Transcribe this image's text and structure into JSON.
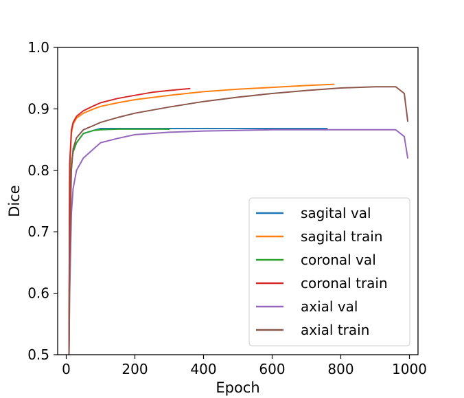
{
  "chart_data": {
    "type": "line",
    "xlabel": "Epoch",
    "ylabel": "Dice",
    "xlim": [
      -25,
      1025
    ],
    "ylim": [
      0.5,
      1.0
    ],
    "xticks": [
      0,
      200,
      400,
      600,
      800,
      1000
    ],
    "yticks": [
      0.5,
      0.6,
      0.7,
      0.8,
      0.9,
      1.0
    ],
    "xtick_labels": [
      "0",
      "200",
      "400",
      "600",
      "800",
      "1000"
    ],
    "ytick_labels": [
      "0.5",
      "0.6",
      "0.7",
      "0.8",
      "0.9",
      "1.0"
    ],
    "grid": false,
    "legend_position": "lower-right",
    "series": [
      {
        "name": "sagital val",
        "color": "#1f77b4",
        "x": [
          8,
          10,
          15,
          20,
          30,
          50,
          80,
          100,
          150,
          200,
          300,
          400,
          500,
          600,
          700,
          760
        ],
        "y": [
          0.5,
          0.75,
          0.81,
          0.83,
          0.845,
          0.86,
          0.865,
          0.868,
          0.868,
          0.868,
          0.868,
          0.868,
          0.868,
          0.868,
          0.868,
          0.868
        ]
      },
      {
        "name": "sagital train",
        "color": "#ff7f0e",
        "x": [
          8,
          10,
          15,
          20,
          30,
          50,
          80,
          100,
          150,
          200,
          300,
          400,
          500,
          600,
          700,
          780
        ],
        "y": [
          0.5,
          0.8,
          0.86,
          0.875,
          0.885,
          0.893,
          0.9,
          0.904,
          0.91,
          0.915,
          0.922,
          0.928,
          0.932,
          0.935,
          0.938,
          0.94
        ]
      },
      {
        "name": "coronal val",
        "color": "#2ca02c",
        "x": [
          8,
          10,
          15,
          20,
          30,
          50,
          80,
          100,
          150,
          200,
          250,
          300
        ],
        "y": [
          0.5,
          0.76,
          0.81,
          0.83,
          0.845,
          0.86,
          0.865,
          0.866,
          0.867,
          0.867,
          0.867,
          0.867
        ]
      },
      {
        "name": "coronal train",
        "color": "#d62728",
        "x": [
          8,
          10,
          15,
          20,
          30,
          50,
          80,
          100,
          150,
          200,
          250,
          300,
          360
        ],
        "y": [
          0.5,
          0.81,
          0.865,
          0.878,
          0.888,
          0.897,
          0.905,
          0.91,
          0.917,
          0.922,
          0.927,
          0.93,
          0.933
        ]
      },
      {
        "name": "axial val",
        "color": "#9467bd",
        "x": [
          8,
          10,
          15,
          20,
          30,
          50,
          80,
          100,
          150,
          200,
          300,
          400,
          500,
          600,
          700,
          800,
          900,
          960,
          985,
          995
        ],
        "y": [
          0.5,
          0.6,
          0.73,
          0.77,
          0.8,
          0.82,
          0.835,
          0.845,
          0.852,
          0.858,
          0.862,
          0.864,
          0.865,
          0.866,
          0.866,
          0.866,
          0.866,
          0.866,
          0.855,
          0.82
        ]
      },
      {
        "name": "axial train",
        "color": "#8c564b",
        "x": [
          8,
          10,
          15,
          20,
          30,
          50,
          80,
          100,
          150,
          200,
          300,
          400,
          500,
          600,
          700,
          800,
          900,
          960,
          985,
          995
        ],
        "y": [
          0.5,
          0.65,
          0.8,
          0.835,
          0.853,
          0.866,
          0.873,
          0.878,
          0.886,
          0.893,
          0.903,
          0.912,
          0.919,
          0.925,
          0.93,
          0.934,
          0.936,
          0.936,
          0.925,
          0.88
        ]
      }
    ]
  }
}
